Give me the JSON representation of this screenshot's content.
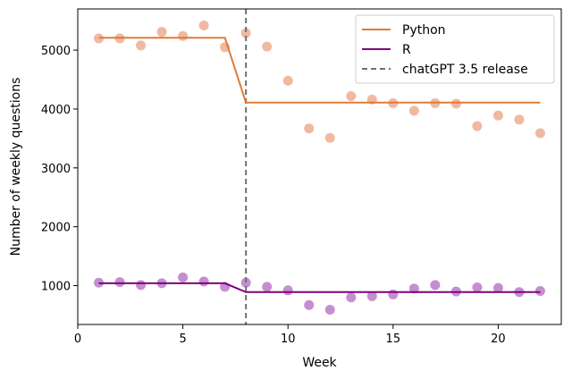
{
  "chart_data": {
    "type": "scatter",
    "xlabel": "Week",
    "ylabel": "Number of weekly questions",
    "xlim": [
      0,
      23
    ],
    "ylim": [
      340,
      5700
    ],
    "xticks": [
      0,
      5,
      10,
      15,
      20
    ],
    "yticks": [
      1000,
      2000,
      3000,
      4000,
      5000
    ],
    "xtick_labels": [
      "0",
      "5",
      "10",
      "15",
      "20"
    ],
    "ytick_labels": [
      "1000",
      "2000",
      "3000",
      "4000",
      "5000"
    ],
    "grid": false,
    "legend_position": "top-right",
    "series": [
      {
        "name": "Python",
        "color": "#e07b39",
        "point_color": "#f0b9a0",
        "points": {
          "x": [
            1,
            2,
            3,
            4,
            5,
            6,
            7,
            8,
            9,
            10,
            11,
            12,
            13,
            14,
            15,
            16,
            17,
            18,
            19,
            20,
            21,
            22
          ],
          "y": [
            5200,
            5200,
            5080,
            5310,
            5240,
            5420,
            5050,
            5290,
            5060,
            4480,
            3670,
            3510,
            4220,
            4160,
            4100,
            3970,
            4100,
            4090,
            3710,
            3890,
            3820,
            3590
          ]
        },
        "fit": {
          "x": [
            1,
            7,
            8,
            22
          ],
          "y": [
            5210,
            5210,
            4110,
            4110
          ]
        }
      },
      {
        "name": "R",
        "color": "#800080",
        "point_color": "#c58fcf",
        "points": {
          "x": [
            1,
            2,
            3,
            4,
            5,
            6,
            7,
            8,
            9,
            10,
            11,
            12,
            13,
            14,
            15,
            16,
            17,
            18,
            19,
            20,
            21,
            22
          ],
          "y": [
            1050,
            1060,
            1010,
            1040,
            1140,
            1070,
            980,
            1050,
            980,
            920,
            670,
            590,
            800,
            820,
            850,
            950,
            1010,
            900,
            970,
            960,
            890,
            910
          ]
        },
        "fit": {
          "x": [
            1,
            7,
            8,
            22
          ],
          "y": [
            1040,
            1040,
            890,
            890
          ]
        }
      }
    ],
    "vline": {
      "name": "chatGPT 3.5 release",
      "x": 8,
      "color": "#707070"
    }
  }
}
